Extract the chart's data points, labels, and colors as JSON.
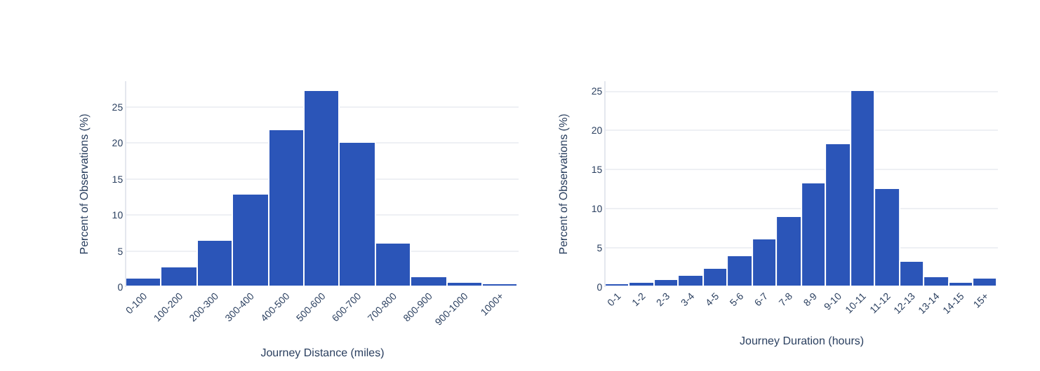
{
  "chart_data": [
    {
      "type": "bar",
      "categories": [
        "0-100",
        "100-200",
        "200-300",
        "300-400",
        "400-500",
        "500-600",
        "600-700",
        "700-800",
        "800-900",
        "900-1000",
        "1000+"
      ],
      "values": [
        1.2,
        2.7,
        6.5,
        12.9,
        21.7,
        27.2,
        20.0,
        6.1,
        1.3,
        0.6,
        0.3
      ],
      "color": "#2b55b8",
      "xlabel": "Journey Distance (miles)",
      "ylabel": "Percent of Observations (%)",
      "ylim": [
        0,
        28.6
      ],
      "yticks": [
        0,
        5,
        10,
        15,
        20,
        25
      ],
      "grid": "y"
    },
    {
      "type": "bar",
      "categories": [
        "0-1",
        "1-2",
        "2-3",
        "3-4",
        "4-5",
        "5-6",
        "6-7",
        "7-8",
        "8-9",
        "9-10",
        "10-11",
        "11-12",
        "12-13",
        "13-14",
        "14-15",
        "15+"
      ],
      "values": [
        0.3,
        0.5,
        0.9,
        1.5,
        2.4,
        4.0,
        6.0,
        9.0,
        13.3,
        18.3,
        25.0,
        12.5,
        3.3,
        1.2,
        0.6,
        1.0
      ],
      "color": "#2b55b8",
      "xlabel": "Journey Duration (hours)",
      "ylabel": "Percent of Observations (%)",
      "ylim": [
        0,
        26.3
      ],
      "yticks": [
        0,
        5,
        10,
        15,
        20,
        25
      ],
      "grid": "y"
    }
  ]
}
